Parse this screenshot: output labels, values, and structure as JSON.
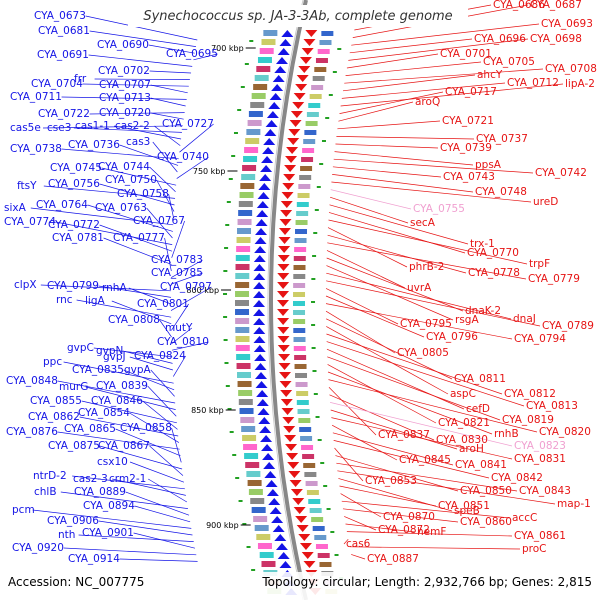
{
  "title": "Synechococcus sp. JA-3-3Ab, complete genome",
  "accession": "Accession: NC_007775",
  "summary": "Topology: circular; Length: 2,932,766 bp; Genes: 2,815",
  "colors": {
    "forward_strand": "#1414e6",
    "reverse_strand": "#e61414",
    "pseudo_gene": "#f0a0d0",
    "backbone": "#888888",
    "tick_marker": "#22a022"
  },
  "scale_marks": [
    "700 kbp",
    "750 kbp",
    "800 kbp",
    "850 kbp",
    "900 kbp"
  ],
  "left_labels": [
    "CYA_0673",
    "CYA_0681",
    "CYA_0690",
    "CYA_0695",
    "CYA_0691",
    "CYA_0702",
    "frr",
    "CYA_0704",
    "CYA_0707",
    "CYA_0711",
    "CYA_0713",
    "CYA_0722",
    "CYA_0720",
    "cas5e",
    "cse3",
    "cas1-1",
    "cas2-2",
    "CYA_0727",
    "CYA_0738",
    "CYA_0736",
    "cas3",
    "CYA_0740",
    "CYA_0745",
    "CYA_0744",
    "ftsY",
    "CYA_0756",
    "CYA_0750",
    "CYA_0758",
    "sixA",
    "CYA_0764",
    "CYA_0763",
    "CYA_0774",
    "CYA_0772",
    "CYA_0767",
    "CYA_0781",
    "CYA_0777",
    "CYA_0783",
    "CYA_0785",
    "clpX",
    "CYA_0799",
    "rnhA",
    "CYA_0797",
    "rnc",
    "ligA",
    "CYA_0801",
    "CYA_0808",
    "mutY",
    "CYA_0810",
    "gvpC",
    "gvpN",
    "gvpJ",
    "CYA_0824",
    "ppc",
    "CYA_0835",
    "gvpA",
    "CYA_0848",
    "murG",
    "CYA_0839",
    "CYA_0855",
    "CYA_0846",
    "CYA_0862",
    "CYA_0854",
    "CYA_0876",
    "CYA_0865",
    "CYA_0858",
    "CYA_0875",
    "CYA_0867",
    "csx10",
    "ntrD-2",
    "cas2-3",
    "crm2-1",
    "chlB",
    "CYA_0889",
    "CYA_0894",
    "pcm",
    "CYA_0906",
    "nth",
    "CYA_0901",
    "CYA_0920",
    "CYA_0914"
  ],
  "right_labels": [
    "CYA_0686",
    "CYA_0687",
    "CYA_0693",
    "CYA_0696",
    "CYA_0698",
    "CYA_0701",
    "CYA_0705",
    "CYA_0708",
    "ahcY",
    "CYA_0712",
    "lipA-2",
    "CYA_0717",
    "aroQ",
    "CYA_0721",
    "CYA_0737",
    "CYA_0739",
    "ppsA",
    "CYA_0742",
    "CYA_0743",
    "CYA_0748",
    "ureD",
    "CYA_0755",
    "secA",
    "trx-1",
    "CYA_0770",
    "trpF",
    "phrB-2",
    "CYA_0778",
    "CYA_0779",
    "uvrA",
    "dnaK-2",
    "rsgA",
    "dnaJ",
    "CYA_0789",
    "CYA_0795",
    "CYA_0796",
    "CYA_0794",
    "CYA_0805",
    "CYA_0811",
    "aspC",
    "CYA_0812",
    "CYA_0813",
    "cefD",
    "CYA_0819",
    "CYA_0821",
    "rnhB",
    "CYA_0820",
    "CYA_0837",
    "CYA_0830",
    "CYA_0823",
    "aroH",
    "CYA_0831",
    "CYA_0845",
    "CYA_0841",
    "CYA_0842",
    "CYA_0853",
    "CYA_0850",
    "CYA_0843",
    "map-1",
    "speB",
    "CYA_0851",
    "CYA_0870",
    "accC",
    "CYA_0860",
    "CYA_0872",
    "hemF",
    "CYA_0861",
    "cas6",
    "proC",
    "CYA_0887"
  ]
}
